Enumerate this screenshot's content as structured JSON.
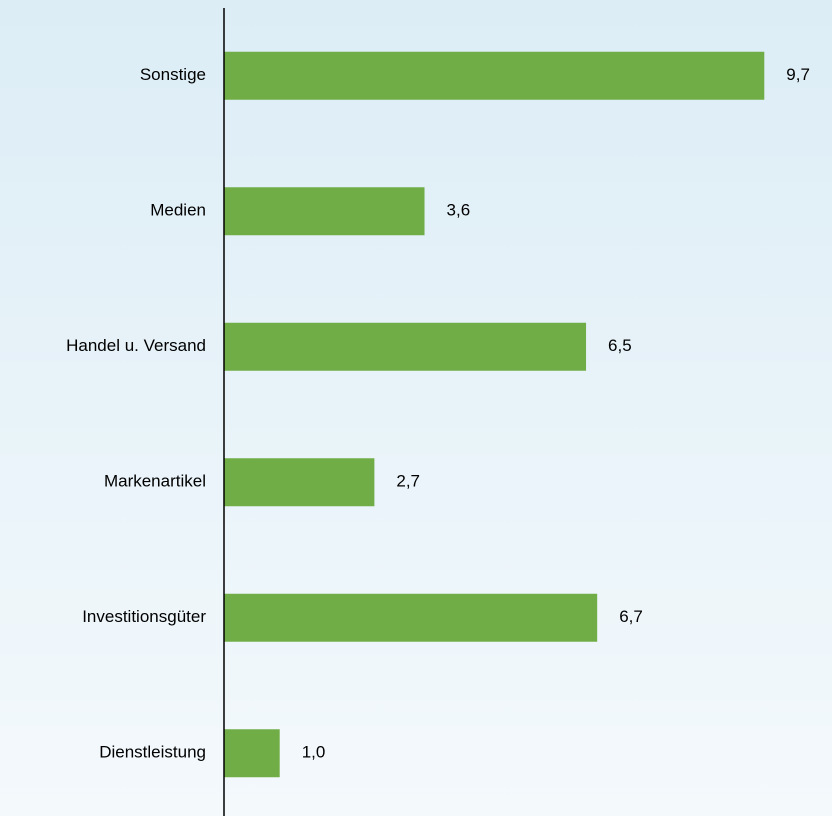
{
  "chart_data": {
    "type": "bar",
    "orientation": "horizontal",
    "categories": [
      "Sonstige",
      "Medien",
      "Handel u. Versand",
      "Markenartikel",
      "Investitionsgüter",
      "Dienstleistung"
    ],
    "values": [
      9.7,
      3.6,
      6.5,
      2.7,
      6.7,
      1.0
    ],
    "value_labels": [
      "9,7",
      "3,6",
      "6,5",
      "2,7",
      "6,7",
      "1,0"
    ],
    "color": "#70ad47",
    "xlim": [
      0,
      10
    ]
  }
}
